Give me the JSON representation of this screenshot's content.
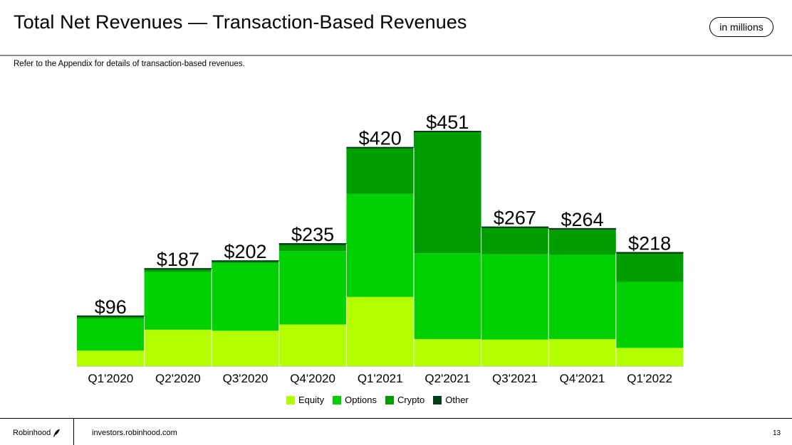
{
  "header": {
    "title": "Total Net Revenues — Transaction-Based Revenues",
    "unit_badge": "in millions",
    "subtitle": "Refer to the Appendix for details of transaction-based revenues."
  },
  "footer": {
    "brand": "Robinhood",
    "brand_icon": "feather-icon",
    "website": "investors.robinhood.com",
    "page_number": "13"
  },
  "chart_data": {
    "type": "bar",
    "stacked": true,
    "title": "Total Net Revenues — Transaction-Based Revenues",
    "xlabel": "",
    "ylabel": "",
    "units": "in millions",
    "ylim": [
      0,
      451
    ],
    "grid": false,
    "legend_position": "bottom-center",
    "categories": [
      "Q1'2020",
      "Q2'2020",
      "Q3'2020",
      "Q4'2020",
      "Q1'2021",
      "Q2'2021",
      "Q3'2021",
      "Q4'2021",
      "Q1'2022"
    ],
    "totals": [
      96,
      187,
      202,
      235,
      420,
      451,
      267,
      264,
      218
    ],
    "total_labels": [
      "$96",
      "$187",
      "$202",
      "$235",
      "$420",
      "$451",
      "$267",
      "$264",
      "$218"
    ],
    "series": [
      {
        "name": "Equity",
        "color": "#b3ff00",
        "values": [
          30,
          70,
          68,
          80,
          133,
          52,
          51,
          52,
          35
        ]
      },
      {
        "name": "Options",
        "color": "#00d100",
        "values": [
          61,
          111,
          130,
          141,
          198,
          165,
          164,
          162,
          127
        ]
      },
      {
        "name": "Crypto",
        "color": "#009e00",
        "values": [
          5,
          5,
          4,
          12,
          88,
          233,
          51,
          48,
          54
        ]
      },
      {
        "name": "Other",
        "color": "#003d1c",
        "values": [
          0,
          1,
          0,
          2,
          1,
          1,
          1,
          2,
          2
        ]
      }
    ]
  }
}
